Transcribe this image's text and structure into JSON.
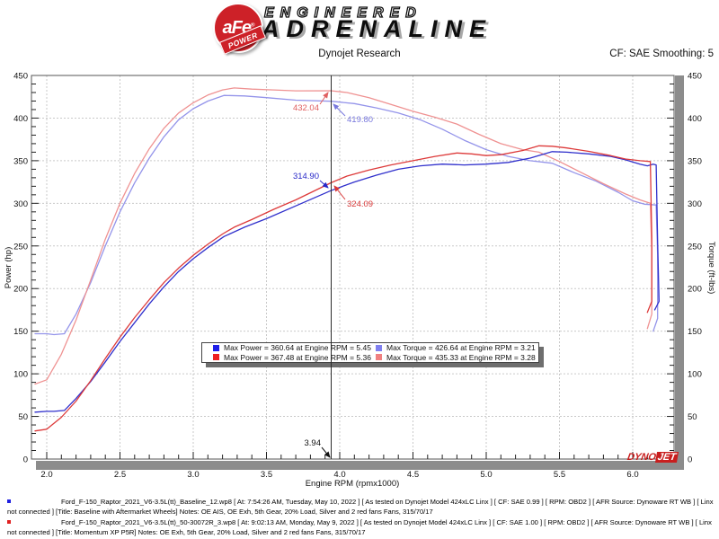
{
  "header": {
    "logo": {
      "circle_text": "aFe",
      "registered_mark": "®",
      "banner_text": "POWER",
      "line1": "ENGINEERED",
      "line2": "ADRENALINE"
    },
    "title": "Dynojet Research",
    "cf_label": "CF: SAE  Smoothing: 5"
  },
  "chart_data": {
    "type": "line",
    "title": "Dynojet Research",
    "xlabel": "Engine RPM (rpmx1000)",
    "ylabel_left": "Power (hp)",
    "ylabel_right": "Torque (ft-lbs)",
    "x_range": [
      1.9,
      6.28
    ],
    "y_range": [
      0,
      450
    ],
    "x_ticks": [
      2.0,
      2.5,
      3.0,
      3.5,
      4.0,
      4.5,
      5.0,
      5.5,
      6.0
    ],
    "y_ticks": [
      0,
      50,
      100,
      150,
      200,
      250,
      300,
      350,
      400,
      450
    ],
    "x_minor_step": 0.1,
    "y_minor_step": 10,
    "grid": true,
    "cursor": {
      "rpm": 3.94,
      "label": "3.94"
    },
    "series": [
      {
        "name": "baseline-torque",
        "color": "#9494ea",
        "axis": "torque",
        "points": [
          [
            1.92,
            147
          ],
          [
            2.0,
            147
          ],
          [
            2.05,
            146
          ],
          [
            2.12,
            147
          ],
          [
            2.2,
            170
          ],
          [
            2.3,
            207
          ],
          [
            2.4,
            250
          ],
          [
            2.5,
            290
          ],
          [
            2.6,
            324
          ],
          [
            2.7,
            353
          ],
          [
            2.8,
            378
          ],
          [
            2.9,
            398
          ],
          [
            3.0,
            411
          ],
          [
            3.1,
            420
          ],
          [
            3.21,
            426.64
          ],
          [
            3.35,
            426
          ],
          [
            3.5,
            424
          ],
          [
            3.7,
            421
          ],
          [
            3.94,
            419.8
          ],
          [
            4.1,
            417
          ],
          [
            4.25,
            412
          ],
          [
            4.4,
            406
          ],
          [
            4.55,
            398
          ],
          [
            4.7,
            387
          ],
          [
            4.85,
            374
          ],
          [
            5.0,
            363
          ],
          [
            5.15,
            355
          ],
          [
            5.3,
            350
          ],
          [
            5.45,
            347
          ],
          [
            5.6,
            336
          ],
          [
            5.75,
            326
          ],
          [
            5.9,
            313
          ],
          [
            6.0,
            303
          ],
          [
            6.08,
            299
          ],
          [
            6.16,
            298
          ],
          [
            6.17,
            240
          ],
          [
            6.17,
            165
          ],
          [
            6.14,
            150
          ]
        ]
      },
      {
        "name": "momentum-torque",
        "color": "#ef9292",
        "axis": "torque",
        "points": [
          [
            1.92,
            88
          ],
          [
            2.0,
            93
          ],
          [
            2.1,
            123
          ],
          [
            2.2,
            163
          ],
          [
            2.3,
            210
          ],
          [
            2.4,
            258
          ],
          [
            2.5,
            300
          ],
          [
            2.6,
            335
          ],
          [
            2.7,
            364
          ],
          [
            2.8,
            388
          ],
          [
            2.9,
            406
          ],
          [
            3.0,
            418
          ],
          [
            3.1,
            427
          ],
          [
            3.2,
            433
          ],
          [
            3.28,
            435.33
          ],
          [
            3.4,
            434
          ],
          [
            3.55,
            433
          ],
          [
            3.7,
            432
          ],
          [
            3.94,
            432.04
          ],
          [
            4.05,
            430
          ],
          [
            4.2,
            424
          ],
          [
            4.35,
            416
          ],
          [
            4.5,
            408
          ],
          [
            4.65,
            401
          ],
          [
            4.8,
            393
          ],
          [
            4.95,
            381
          ],
          [
            5.1,
            370
          ],
          [
            5.25,
            363
          ],
          [
            5.36,
            360
          ],
          [
            5.5,
            349
          ],
          [
            5.65,
            336
          ],
          [
            5.8,
            323
          ],
          [
            5.95,
            311
          ],
          [
            6.05,
            304
          ],
          [
            6.12,
            300
          ],
          [
            6.13,
            245
          ],
          [
            6.13,
            170
          ],
          [
            6.1,
            153
          ]
        ]
      },
      {
        "name": "baseline-power",
        "color": "#3030cc",
        "axis": "power",
        "points": [
          [
            1.92,
            55
          ],
          [
            2.0,
            56
          ],
          [
            2.05,
            56
          ],
          [
            2.12,
            57
          ],
          [
            2.2,
            71
          ],
          [
            2.3,
            91
          ],
          [
            2.4,
            114
          ],
          [
            2.5,
            138
          ],
          [
            2.6,
            160
          ],
          [
            2.7,
            182
          ],
          [
            2.8,
            202
          ],
          [
            2.9,
            220
          ],
          [
            3.0,
            235
          ],
          [
            3.1,
            248
          ],
          [
            3.21,
            261
          ],
          [
            3.35,
            272
          ],
          [
            3.5,
            282
          ],
          [
            3.7,
            297
          ],
          [
            3.94,
            314.9
          ],
          [
            4.1,
            325
          ],
          [
            4.25,
            333
          ],
          [
            4.4,
            340
          ],
          [
            4.55,
            344
          ],
          [
            4.7,
            346
          ],
          [
            4.85,
            345
          ],
          [
            5.0,
            346
          ],
          [
            5.15,
            348
          ],
          [
            5.3,
            353
          ],
          [
            5.45,
            360.64
          ],
          [
            5.55,
            360
          ],
          [
            5.7,
            358
          ],
          [
            5.85,
            355
          ],
          [
            5.95,
            351
          ],
          [
            6.05,
            346
          ],
          [
            6.1,
            344
          ],
          [
            6.14,
            346
          ],
          [
            6.16,
            345
          ],
          [
            6.17,
            255
          ],
          [
            6.18,
            185
          ],
          [
            6.15,
            175
          ]
        ]
      },
      {
        "name": "momentum-power",
        "color": "#dd3a3a",
        "axis": "power",
        "points": [
          [
            1.92,
            33
          ],
          [
            2.0,
            35
          ],
          [
            2.1,
            49
          ],
          [
            2.2,
            68
          ],
          [
            2.3,
            92
          ],
          [
            2.4,
            118
          ],
          [
            2.5,
            143
          ],
          [
            2.6,
            166
          ],
          [
            2.7,
            187
          ],
          [
            2.8,
            207
          ],
          [
            2.9,
            224
          ],
          [
            3.0,
            239
          ],
          [
            3.1,
            252
          ],
          [
            3.2,
            264
          ],
          [
            3.28,
            272
          ],
          [
            3.4,
            281
          ],
          [
            3.55,
            293
          ],
          [
            3.7,
            304
          ],
          [
            3.94,
            324.09
          ],
          [
            4.05,
            332
          ],
          [
            4.2,
            339
          ],
          [
            4.35,
            345
          ],
          [
            4.5,
            350
          ],
          [
            4.65,
            355
          ],
          [
            4.8,
            359
          ],
          [
            4.9,
            358
          ],
          [
            5.0,
            356
          ],
          [
            5.1,
            357
          ],
          [
            5.25,
            362
          ],
          [
            5.36,
            367.48
          ],
          [
            5.45,
            367
          ],
          [
            5.55,
            365
          ],
          [
            5.7,
            361
          ],
          [
            5.85,
            356
          ],
          [
            5.95,
            352
          ],
          [
            6.05,
            350
          ],
          [
            6.12,
            349
          ],
          [
            6.13,
            260
          ],
          [
            6.13,
            185
          ],
          [
            6.1,
            172
          ]
        ]
      }
    ],
    "annotations": [
      {
        "text": "432.04",
        "value": 432.04,
        "rpm": 3.94,
        "color": "#e06060",
        "series": "momentum-torque"
      },
      {
        "text": "419.80",
        "value": 419.8,
        "rpm": 3.94,
        "color": "#7878dd",
        "series": "baseline-torque"
      },
      {
        "text": "314.90",
        "value": 314.9,
        "rpm": 3.94,
        "color": "#2828c8",
        "series": "baseline-power"
      },
      {
        "text": "324.09",
        "value": 324.09,
        "rpm": 3.94,
        "color": "#d83838",
        "series": "momentum-power"
      },
      {
        "text": "3.94",
        "value": 0,
        "rpm": 3.94,
        "color": "#111111",
        "series": "x-axis"
      }
    ],
    "legend": {
      "entries": [
        {
          "color": "#1f1fe8",
          "label": "Max Power = 360.64 at Engine RPM = 5.45"
        },
        {
          "color": "#ee1f1f",
          "label": "Max Power = 367.48 at Engine RPM = 5.36"
        },
        {
          "color": "#8080f0",
          "label": "Max Torque = 426.64 at Engine RPM = 3.21"
        },
        {
          "color": "#f08080",
          "label": "Max Torque = 435.33 at Engine RPM = 3.28"
        }
      ]
    }
  },
  "watermark": {
    "part1": "DYNO",
    "part2": "JET"
  },
  "footer": {
    "notes": [
      {
        "bullet_color": "#2020e0",
        "text": "Ford_F-150_Raptor_2021_V6-3.5L(tt)_Baseline_12.wp8 [ At: 7:54:26 AM, Tuesday, May 10, 2022 ] [ As tested on Dynojet Model 424xLC Linx ] [ CF: SAE 0.99 ] [ RPM: OBD2 ] [ AFR Source: Dynoware RT WB ] [ Linx not connected ] [Title: Baseline with Aftermarket Wheels]  Notes: OE AIS, OE Exh, 5th Gear, 20% Load, Silver and 2 red fans Fans, 315/70/17"
      },
      {
        "bullet_color": "#e02020",
        "text": "Ford_F-150_Raptor_2021_V6-3.5L(tt)_50-30072R_3.wp8 [ At: 9:02:13 AM, Monday, May 9, 2022 ] [ As tested on Dynojet Model 424xLC Linx ] [ CF: SAE 1.00 ] [ RPM: OBD2 ] [ AFR Source: Dynoware RT WB ] [ Linx not connected ] [Title: Momentum XP P5R]  Notes: OE Exh, 5th Gear, 20% Load, Silver and 2 red fans Fans, 315/70/17"
      }
    ]
  }
}
